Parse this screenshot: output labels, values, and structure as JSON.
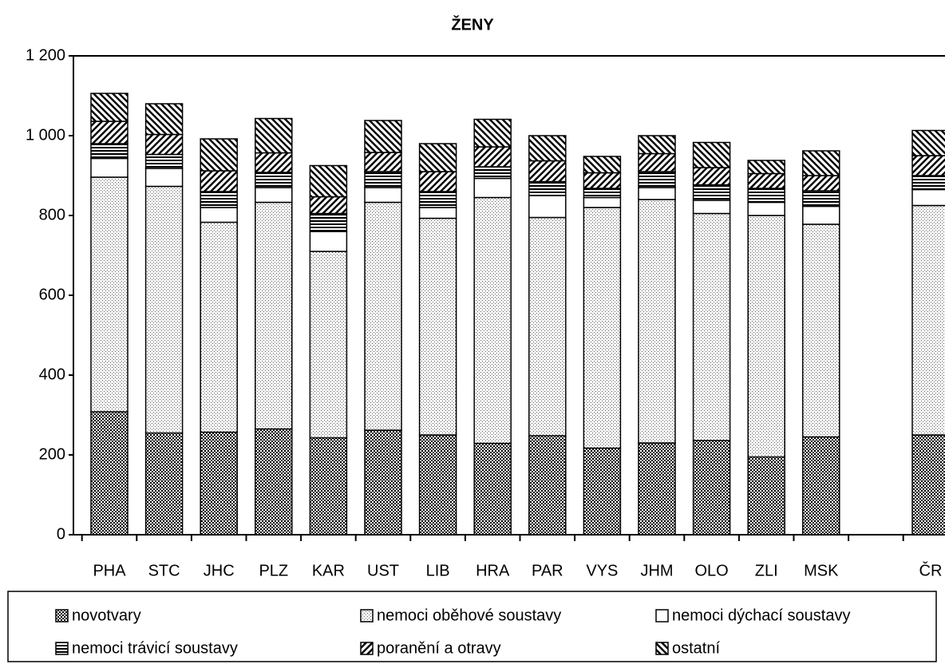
{
  "chart_data": {
    "type": "stacked_bar",
    "title": "ŽENY",
    "categories": [
      "PHA",
      "STC",
      "JHC",
      "PLZ",
      "KAR",
      "UST",
      "LIB",
      "HRA",
      "PAR",
      "VYS",
      "JHM",
      "OLO",
      "ZLI",
      "MSK",
      null,
      "ČR"
    ],
    "series": [
      {
        "name": "novotvary",
        "color": "#000000",
        "values": [
          308,
          255,
          257,
          265,
          243,
          262,
          250,
          229,
          248,
          217,
          230,
          236,
          195,
          245,
          null,
          250
        ]
      },
      {
        "name": "nemoci oběhové soustavy",
        "color": "#555555",
        "values": [
          588,
          618,
          526,
          568,
          467,
          571,
          543,
          616,
          547,
          603,
          610,
          569,
          605,
          533,
          null,
          575
        ]
      },
      {
        "name": "nemoci dýchací soustavy",
        "color": "#ffffff",
        "values": [
          47,
          45,
          37,
          37,
          50,
          37,
          27,
          48,
          55,
          25,
          30,
          33,
          33,
          45,
          null,
          40
        ]
      },
      {
        "name": "nemoci trávicí soustavy",
        "color": "#000000",
        "values": [
          37,
          35,
          40,
          38,
          45,
          40,
          40,
          29,
          35,
          23,
          40,
          39,
          35,
          39,
          null,
          35
        ]
      },
      {
        "name": "poranění a otravy",
        "color": "#000000",
        "values": [
          56,
          50,
          52,
          49,
          42,
          48,
          50,
          50,
          52,
          39,
          45,
          43,
          37,
          38,
          null,
          50
        ]
      },
      {
        "name": "ostatní",
        "color": "#000000",
        "values": [
          70,
          77,
          80,
          86,
          78,
          80,
          70,
          69,
          63,
          41,
          45,
          63,
          33,
          62,
          null,
          63
        ]
      }
    ],
    "ylim": [
      0,
      1200
    ],
    "yticks": [
      0,
      200,
      400,
      600,
      800,
      {
        "value": 1000,
        "label": "1 000"
      },
      {
        "value": 1200,
        "label": "1 200"
      }
    ],
    "legend": "bottom"
  }
}
